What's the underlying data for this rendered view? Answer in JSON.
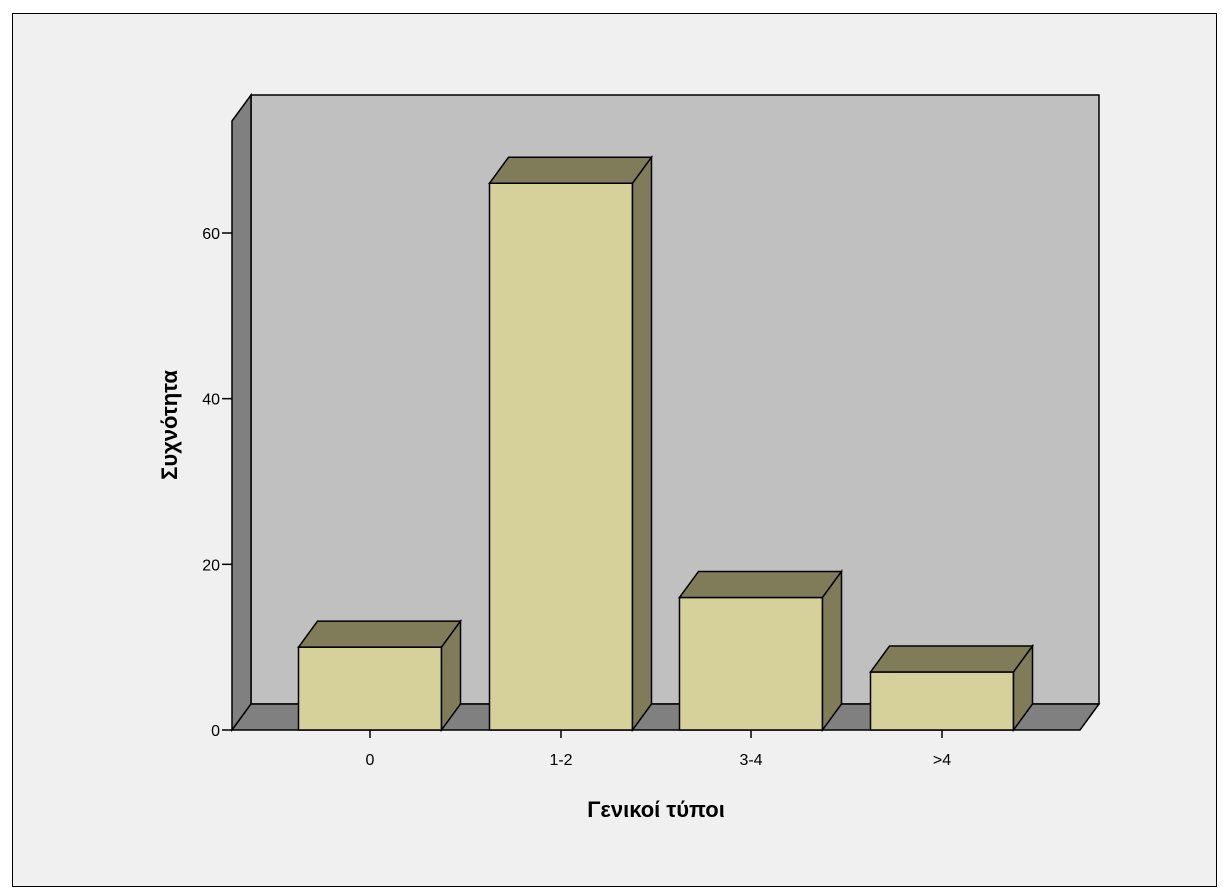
{
  "chart_data": {
    "type": "bar",
    "style": "3d",
    "title": "",
    "xlabel": "Γενικοί τύποι",
    "ylabel": "Συχνότητα",
    "categories": [
      "0",
      "1-2",
      "3-4",
      ">4"
    ],
    "values": [
      10,
      66,
      16,
      7
    ],
    "ylim": [
      0,
      72
    ],
    "yticks": [
      0,
      20,
      40,
      60
    ],
    "grid": false,
    "legend": "none",
    "colors": {
      "background": "#f0f0f0",
      "back_wall": "#c0c0c0",
      "side_wall": "#808080",
      "floor": "#808080",
      "bar_front": "#d6d19a",
      "bar_top": "#807c59",
      "bar_side": "#807c59",
      "outline": "#000000"
    }
  }
}
